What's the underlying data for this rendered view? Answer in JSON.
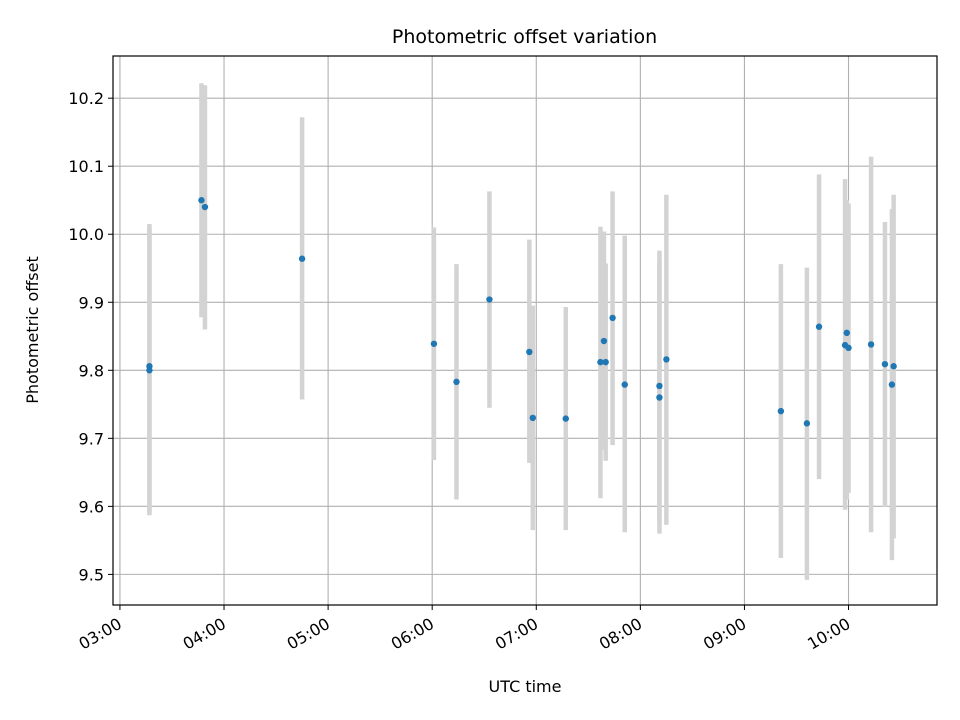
{
  "chart_data": {
    "type": "scatter",
    "title": "Photometric offset variation",
    "xlabel": "UTC time",
    "ylabel": "Photometric offset",
    "xlim": [
      "02:56",
      "10:51"
    ],
    "ylim": [
      9.455,
      10.262
    ],
    "grid": true,
    "x_ticks": [
      "03:00",
      "04:00",
      "05:00",
      "06:00",
      "07:00",
      "08:00",
      "09:00",
      "10:00"
    ],
    "y_ticks": [
      "9.5",
      "9.6",
      "9.7",
      "9.8",
      "9.9",
      "10.0",
      "10.1",
      "10.2"
    ],
    "series": [
      {
        "marker_color": "#1f77b4",
        "errorbar_color": "#d3d3d3",
        "points": [
          {
            "x": "03:17",
            "y": 9.8,
            "ylow": 9.587,
            "yhigh": 10.015
          },
          {
            "x": "03:17",
            "y": 9.806,
            "ylow": 9.59,
            "yhigh": 10.01
          },
          {
            "x": "03:47",
            "y": 10.05,
            "ylow": 9.878,
            "yhigh": 10.222
          },
          {
            "x": "03:49",
            "y": 10.04,
            "ylow": 9.86,
            "yhigh": 10.219
          },
          {
            "x": "04:45",
            "y": 9.964,
            "ylow": 9.757,
            "yhigh": 10.172
          },
          {
            "x": "06:01",
            "y": 9.839,
            "ylow": 9.668,
            "yhigh": 10.01
          },
          {
            "x": "06:14",
            "y": 9.783,
            "ylow": 9.61,
            "yhigh": 9.956
          },
          {
            "x": "06:33",
            "y": 9.904,
            "ylow": 9.745,
            "yhigh": 10.063
          },
          {
            "x": "06:56",
            "y": 9.827,
            "ylow": 9.664,
            "yhigh": 9.992
          },
          {
            "x": "06:58",
            "y": 9.73,
            "ylow": 9.565,
            "yhigh": 9.895
          },
          {
            "x": "07:17",
            "y": 9.729,
            "ylow": 9.565,
            "yhigh": 9.893
          },
          {
            "x": "07:37",
            "y": 9.812,
            "ylow": 9.612,
            "yhigh": 10.011
          },
          {
            "x": "07:39",
            "y": 9.843,
            "ylow": 9.683,
            "yhigh": 10.004
          },
          {
            "x": "07:40",
            "y": 9.812,
            "ylow": 9.667,
            "yhigh": 9.957
          },
          {
            "x": "07:44",
            "y": 9.877,
            "ylow": 9.69,
            "yhigh": 10.063
          },
          {
            "x": "07:51",
            "y": 9.779,
            "ylow": 9.562,
            "yhigh": 9.998
          },
          {
            "x": "08:11",
            "y": 9.777,
            "ylow": 9.578,
            "yhigh": 9.976
          },
          {
            "x": "08:11",
            "y": 9.76,
            "ylow": 9.56,
            "yhigh": 9.96
          },
          {
            "x": "08:15",
            "y": 9.816,
            "ylow": 9.573,
            "yhigh": 10.058
          },
          {
            "x": "09:21",
            "y": 9.74,
            "ylow": 9.524,
            "yhigh": 9.956
          },
          {
            "x": "09:36",
            "y": 9.722,
            "ylow": 9.492,
            "yhigh": 9.951
          },
          {
            "x": "09:43",
            "y": 9.864,
            "ylow": 9.64,
            "yhigh": 10.088
          },
          {
            "x": "09:58",
            "y": 9.837,
            "ylow": 9.595,
            "yhigh": 10.081
          },
          {
            "x": "09:59",
            "y": 9.855,
            "ylow": 9.61,
            "yhigh": 10.05
          },
          {
            "x": "10:00",
            "y": 9.833,
            "ylow": 9.62,
            "yhigh": 10.045
          },
          {
            "x": "10:13",
            "y": 9.838,
            "ylow": 9.562,
            "yhigh": 10.114
          },
          {
            "x": "10:21",
            "y": 9.809,
            "ylow": 9.599,
            "yhigh": 10.018
          },
          {
            "x": "10:25",
            "y": 9.779,
            "ylow": 9.521,
            "yhigh": 10.037
          },
          {
            "x": "10:26",
            "y": 9.806,
            "ylow": 9.553,
            "yhigh": 10.058
          }
        ]
      }
    ]
  }
}
